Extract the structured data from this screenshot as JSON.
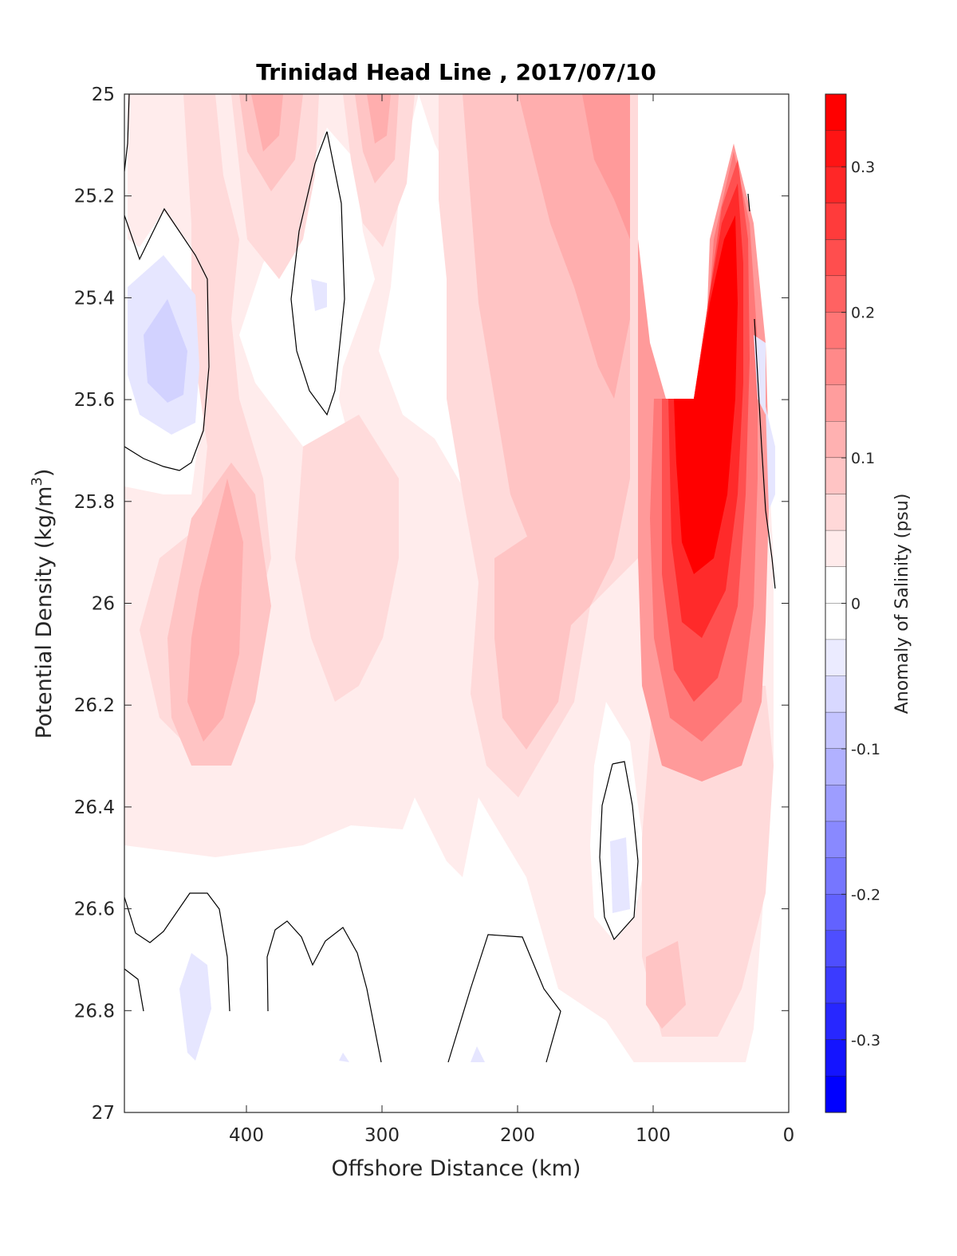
{
  "chart_data": {
    "type": "heatmap",
    "title": "Trinidad Head Line , 2017/07/10",
    "xlabel": "Offshore Distance (km)",
    "ylabel_main": "Potential Density (kg/m",
    "ylabel_sup": "3",
    "ylabel_close": ")",
    "colorbar_label": "Anomaly of Salinity (psu)",
    "x_range": [
      490,
      0
    ],
    "x_reversed": true,
    "y_range": [
      25,
      27
    ],
    "y_reversed": true,
    "x_ticks": [
      {
        "value": 400,
        "label": "400"
      },
      {
        "value": 300,
        "label": "300"
      },
      {
        "value": 200,
        "label": "200"
      },
      {
        "value": 100,
        "label": "100"
      },
      {
        "value": 0,
        "label": "0"
      }
    ],
    "y_ticks": [
      {
        "value": 25,
        "label": "25"
      },
      {
        "value": 25.2,
        "label": "25.2"
      },
      {
        "value": 25.4,
        "label": "25.4"
      },
      {
        "value": 25.6,
        "label": "25.6"
      },
      {
        "value": 25.8,
        "label": "25.8"
      },
      {
        "value": 26,
        "label": "26"
      },
      {
        "value": 26.2,
        "label": "26.2"
      },
      {
        "value": 26.4,
        "label": "26.4"
      },
      {
        "value": 26.6,
        "label": "26.6"
      },
      {
        "value": 26.8,
        "label": "26.8"
      },
      {
        "value": 27,
        "label": "27"
      }
    ],
    "colorbar": {
      "range": [
        -0.35,
        0.35
      ],
      "levels": 28,
      "step": 0.025,
      "ticks": [
        {
          "value": 0.3,
          "label": "0.3"
        },
        {
          "value": 0.2,
          "label": "0.2"
        },
        {
          "value": 0.1,
          "label": "0.1"
        },
        {
          "value": 0,
          "label": "0"
        },
        {
          "value": -0.1,
          "label": "-0.1"
        },
        {
          "value": -0.2,
          "label": "-0.2"
        },
        {
          "value": -0.3,
          "label": "-0.3"
        }
      ],
      "colormap": "blue-white-red",
      "positive_color": "#ff0000",
      "negative_color": "#0000ff",
      "neutral_color": "#ffffff"
    },
    "contour_level": 0,
    "contour_color": "#000000",
    "data_coverage": {
      "max_density_sampled": 26.9,
      "nearshore_gap_km": [
        100,
        25
      ],
      "nearshore_gap_density": [
        25,
        25.6
      ]
    },
    "anomaly_field": [
      {
        "x": 460,
        "y": 25.5,
        "value": -0.05
      },
      {
        "x": 340,
        "y": 25.4,
        "value": -0.03
      },
      {
        "x": 440,
        "y": 26.75,
        "value": -0.03
      },
      {
        "x": 125,
        "y": 26.55,
        "value": -0.03
      },
      {
        "x": 305,
        "y": 25.05,
        "value": 0.09
      },
      {
        "x": 400,
        "y": 25.1,
        "value": 0.08
      },
      {
        "x": 420,
        "y": 26.2,
        "value": 0.1
      },
      {
        "x": 390,
        "y": 25.9,
        "value": 0.1
      },
      {
        "x": 160,
        "y": 25.1,
        "value": 0.1
      },
      {
        "x": 180,
        "y": 26.0,
        "value": 0.07
      },
      {
        "x": 270,
        "y": 25.3,
        "value": 0.0
      },
      {
        "x": 70,
        "y": 25.75,
        "value": 0.35
      },
      {
        "x": 60,
        "y": 25.3,
        "value": 0.3
      },
      {
        "x": 70,
        "y": 26.1,
        "value": 0.2
      },
      {
        "x": 90,
        "y": 26.75,
        "value": 0.08
      }
    ]
  }
}
